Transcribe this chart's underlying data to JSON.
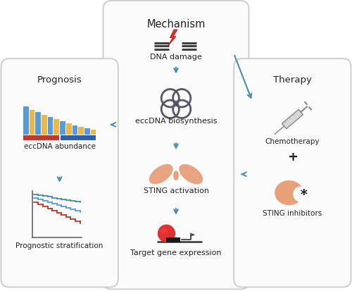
{
  "title_mechanism": "Mechanism",
  "title_prognosis": "Prognosis",
  "title_therapy": "Therapy",
  "label_dna_damage": "DNA damage",
  "label_eccDNA_biosynthesis": "eccDNA biosynthesis",
  "label_sting_activation": "STING activation",
  "label_target_gene": "Target gene expression",
  "label_eccDNA_abundance": "eccDNA abundance",
  "label_prognostic": "Prognostic stratification",
  "label_chemotherapy": "Chemotherapy",
  "label_sting_inhibitors": "STING inhibitors",
  "label_plus": "+",
  "bg_color": "#ffffff",
  "arrow_color": "#4a8fa8",
  "salmon_color": "#e8a07a",
  "red_color": "#e03030",
  "bar_blue": "#5b9bd5",
  "bar_yellow": "#e8b84b",
  "bar_red": "#c0392b",
  "bar_navy": "#2e5fa8",
  "lightning_color": "#e03030",
  "dna_line_color": "#404040",
  "circle_color": "#555566",
  "box_face": "#fafafa",
  "box_edge": "#c8c8c8"
}
